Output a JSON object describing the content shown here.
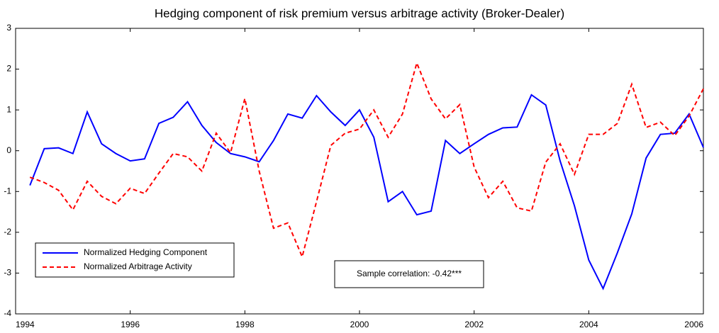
{
  "chart_data": {
    "type": "line",
    "title": "Hedging component of risk premium versus arbitrage activity (Broker-Dealer)",
    "annotation": "Sample correlation: -0.42***",
    "x": [
      1994.25,
      1994.5,
      1994.75,
      1995,
      1995.25,
      1995.5,
      1995.75,
      1996,
      1996.25,
      1996.5,
      1996.75,
      1997,
      1997.25,
      1997.5,
      1997.75,
      1998,
      1998.25,
      1998.5,
      1998.75,
      1999,
      1999.25,
      1999.5,
      1999.75,
      2000,
      2000.25,
      2000.5,
      2000.75,
      2001,
      2001.25,
      2001.5,
      2001.75,
      2002,
      2002.25,
      2002.5,
      2002.75,
      2003,
      2003.25,
      2003.5,
      2003.75,
      2004,
      2004.25,
      2004.5,
      2004.75,
      2005,
      2005.25,
      2005.5,
      2005.75,
      2006
    ],
    "series": [
      {
        "name": "Normalized Hedging Component",
        "color": "#0000ff",
        "dash": "solid",
        "values": [
          -0.85,
          0.05,
          0.07,
          -0.07,
          0.95,
          0.17,
          -0.07,
          -0.25,
          -0.2,
          0.67,
          0.82,
          1.2,
          0.62,
          0.2,
          -0.07,
          -0.15,
          -0.27,
          0.25,
          0.9,
          0.8,
          1.35,
          0.95,
          0.62,
          1.0,
          0.33,
          -1.25,
          -1.0,
          -1.57,
          -1.48,
          0.25,
          -0.07,
          0.17,
          0.4,
          0.56,
          0.58,
          1.37,
          1.12,
          -0.25,
          -1.35,
          -2.68,
          -3.38,
          -2.5,
          -1.55,
          -0.18,
          0.4,
          0.43,
          0.9,
          0.08
        ]
      },
      {
        "name": "Normalized Arbitrage Activity",
        "color": "#ff0000",
        "dash": "dashed",
        "values": [
          -0.65,
          -0.78,
          -0.97,
          -1.45,
          -0.75,
          -1.12,
          -1.3,
          -0.92,
          -1.05,
          -0.55,
          -0.07,
          -0.15,
          -0.5,
          0.43,
          -0.05,
          1.28,
          -0.5,
          -1.9,
          -1.77,
          -2.6,
          -1.25,
          0.13,
          0.43,
          0.53,
          1.0,
          0.33,
          0.9,
          2.15,
          1.27,
          0.78,
          1.13,
          -0.4,
          -1.15,
          -0.75,
          -1.4,
          -1.48,
          -0.28,
          0.17,
          -0.58,
          0.4,
          0.4,
          0.67,
          1.63,
          0.57,
          0.7,
          0.37,
          0.85,
          1.52
        ]
      }
    ],
    "xlim": [
      1994,
      2006
    ],
    "xticks": [
      1994,
      1996,
      1998,
      2000,
      2002,
      2004,
      2006
    ],
    "ylim": [
      -4,
      3
    ],
    "yticks": [
      -4,
      -3,
      -2,
      -1,
      0,
      1,
      2,
      3
    ],
    "legend": "lower left"
  }
}
